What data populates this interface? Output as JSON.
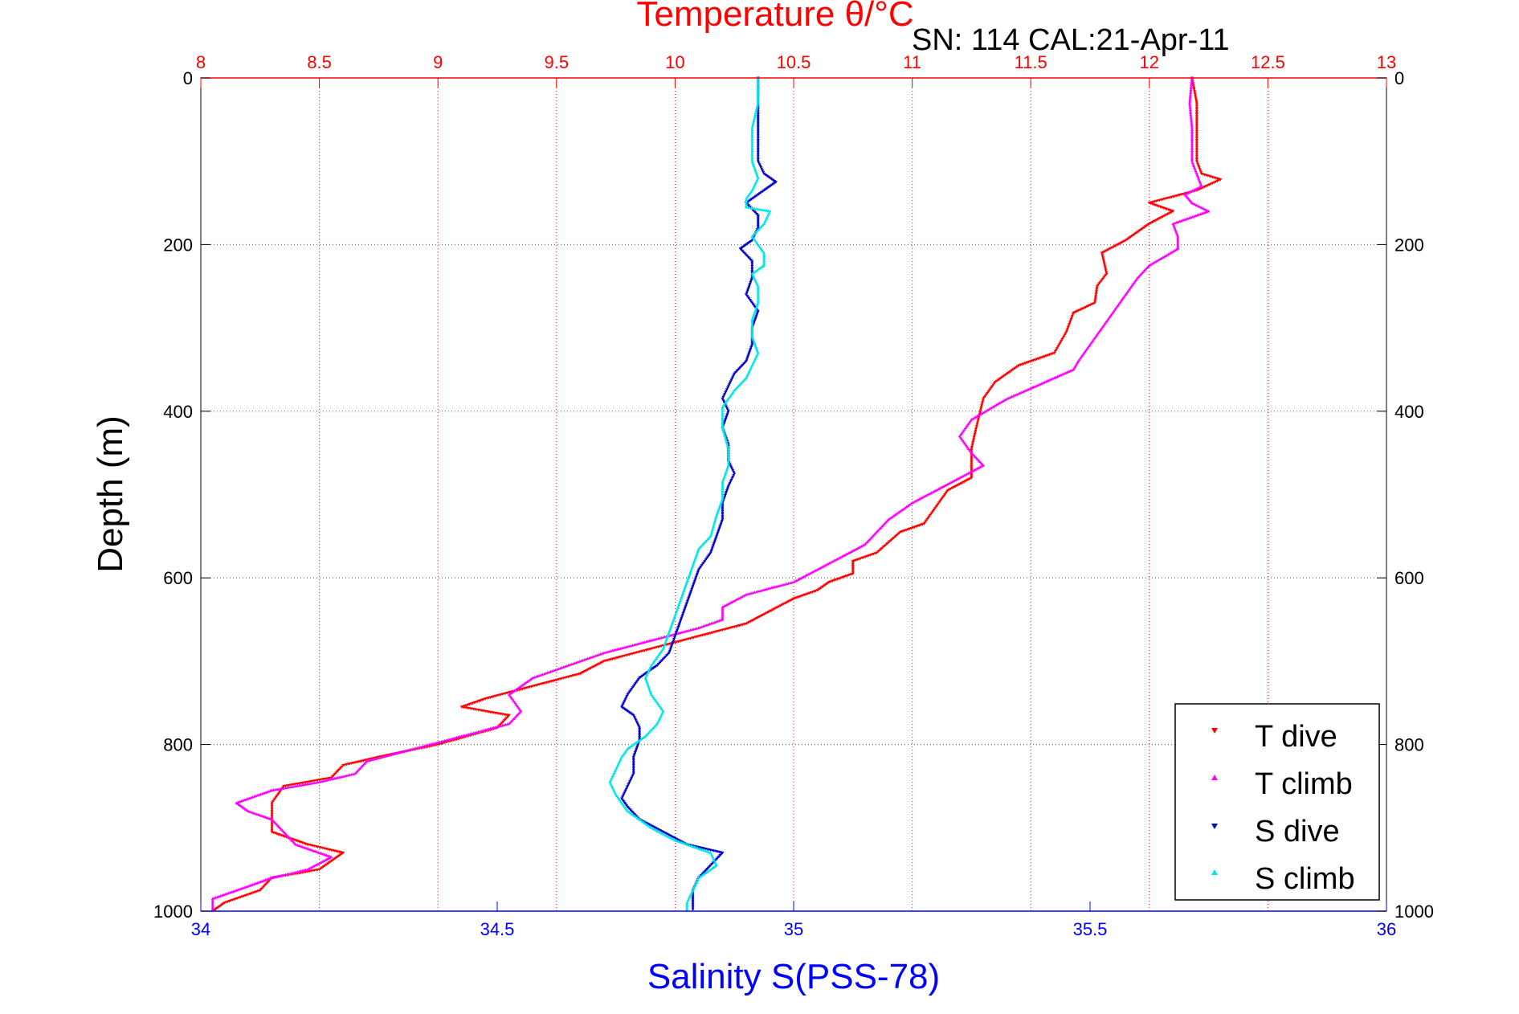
{
  "chart_data": {
    "type": "scatter",
    "title": "Temperature θ/°C",
    "subtitle": "SN: 114  CAL:21-Apr-11",
    "xlabel": "Salinity S(PSS-78)",
    "ylabel": "Depth (m)",
    "x_bottom": {
      "range": [
        34,
        36
      ],
      "ticks": [
        "34",
        "34.5",
        "35",
        "35.5",
        "36"
      ]
    },
    "x_top": {
      "range": [
        8,
        13
      ],
      "ticks": [
        "8",
        "8.5",
        "9",
        "9.5",
        "10",
        "10.5",
        "11",
        "11.5",
        "12",
        "12.5",
        "13"
      ]
    },
    "y": {
      "range": [
        0,
        1000
      ],
      "reversed": true,
      "ticks": [
        "0",
        "200",
        "400",
        "600",
        "800",
        "1000"
      ]
    },
    "grid": true,
    "legend_position": "bottom-right",
    "colors": {
      "t_dive": "#ff0000",
      "t_climb": "#ff00ff",
      "s_dive": "#0000cc",
      "s_climb": "#00e5e5",
      "title": "#ff0000",
      "xlabel": "#0000ff"
    },
    "series": [
      {
        "name": "T dive",
        "axis": "temperature",
        "marker": "triangle-down",
        "points": [
          [
            12.18,
            0
          ],
          [
            12.2,
            30
          ],
          [
            12.2,
            60
          ],
          [
            12.2,
            100
          ],
          [
            12.22,
            115
          ],
          [
            12.3,
            122
          ],
          [
            12.2,
            135
          ],
          [
            12.0,
            150
          ],
          [
            12.1,
            160
          ],
          [
            12.0,
            175
          ],
          [
            11.95,
            185
          ],
          [
            11.9,
            195
          ],
          [
            11.8,
            210
          ],
          [
            11.82,
            235
          ],
          [
            11.78,
            250
          ],
          [
            11.77,
            270
          ],
          [
            11.68,
            282
          ],
          [
            11.65,
            305
          ],
          [
            11.6,
            330
          ],
          [
            11.45,
            345
          ],
          [
            11.35,
            365
          ],
          [
            11.3,
            385
          ],
          [
            11.27,
            420
          ],
          [
            11.25,
            445
          ],
          [
            11.25,
            465
          ],
          [
            11.25,
            480
          ],
          [
            11.15,
            495
          ],
          [
            11.1,
            515
          ],
          [
            11.05,
            535
          ],
          [
            10.95,
            545
          ],
          [
            10.85,
            570
          ],
          [
            10.75,
            580
          ],
          [
            10.75,
            595
          ],
          [
            10.65,
            605
          ],
          [
            10.6,
            615
          ],
          [
            10.5,
            625
          ],
          [
            10.4,
            640
          ],
          [
            10.3,
            655
          ],
          [
            10.1,
            670
          ],
          [
            9.9,
            685
          ],
          [
            9.7,
            700
          ],
          [
            9.6,
            715
          ],
          [
            9.4,
            730
          ],
          [
            9.2,
            745
          ],
          [
            9.1,
            755
          ],
          [
            9.3,
            765
          ],
          [
            9.25,
            780
          ],
          [
            9.0,
            800
          ],
          [
            8.75,
            815
          ],
          [
            8.6,
            825
          ],
          [
            8.55,
            840
          ],
          [
            8.35,
            850
          ],
          [
            8.3,
            870
          ],
          [
            8.3,
            890
          ],
          [
            8.3,
            905
          ],
          [
            8.45,
            920
          ],
          [
            8.6,
            930
          ],
          [
            8.5,
            950
          ],
          [
            8.3,
            960
          ],
          [
            8.25,
            975
          ],
          [
            8.1,
            990
          ],
          [
            8.05,
            1000
          ]
        ]
      },
      {
        "name": "T climb",
        "axis": "temperature",
        "marker": "triangle-up",
        "points": [
          [
            12.18,
            0
          ],
          [
            12.17,
            30
          ],
          [
            12.18,
            60
          ],
          [
            12.18,
            100
          ],
          [
            12.2,
            115
          ],
          [
            12.22,
            130
          ],
          [
            12.15,
            140
          ],
          [
            12.18,
            150
          ],
          [
            12.25,
            160
          ],
          [
            12.1,
            175
          ],
          [
            12.12,
            190
          ],
          [
            12.12,
            205
          ],
          [
            12.0,
            225
          ],
          [
            11.95,
            240
          ],
          [
            11.9,
            260
          ],
          [
            11.85,
            280
          ],
          [
            11.8,
            300
          ],
          [
            11.75,
            320
          ],
          [
            11.7,
            340
          ],
          [
            11.68,
            350
          ],
          [
            11.6,
            360
          ],
          [
            11.4,
            385
          ],
          [
            11.25,
            410
          ],
          [
            11.2,
            430
          ],
          [
            11.25,
            450
          ],
          [
            11.3,
            465
          ],
          [
            11.2,
            480
          ],
          [
            11.1,
            495
          ],
          [
            11.0,
            510
          ],
          [
            10.9,
            530
          ],
          [
            10.85,
            545
          ],
          [
            10.8,
            560
          ],
          [
            10.7,
            575
          ],
          [
            10.6,
            590
          ],
          [
            10.5,
            605
          ],
          [
            10.3,
            620
          ],
          [
            10.2,
            635
          ],
          [
            10.2,
            650
          ],
          [
            10.1,
            660
          ],
          [
            9.9,
            675
          ],
          [
            9.7,
            690
          ],
          [
            9.55,
            705
          ],
          [
            9.4,
            720
          ],
          [
            9.3,
            740
          ],
          [
            9.35,
            760
          ],
          [
            9.3,
            775
          ],
          [
            9.1,
            790
          ],
          [
            8.9,
            805
          ],
          [
            8.7,
            820
          ],
          [
            8.65,
            835
          ],
          [
            8.5,
            845
          ],
          [
            8.3,
            855
          ],
          [
            8.15,
            870
          ],
          [
            8.2,
            880
          ],
          [
            8.3,
            890
          ],
          [
            8.35,
            905
          ],
          [
            8.4,
            920
          ],
          [
            8.55,
            935
          ],
          [
            8.45,
            950
          ],
          [
            8.3,
            960
          ],
          [
            8.2,
            970
          ],
          [
            8.05,
            985
          ],
          [
            8.05,
            1000
          ]
        ]
      },
      {
        "name": "S dive",
        "axis": "salinity",
        "marker": "triangle-down",
        "points": [
          [
            34.94,
            0
          ],
          [
            34.94,
            30
          ],
          [
            34.94,
            60
          ],
          [
            34.94,
            100
          ],
          [
            34.95,
            115
          ],
          [
            34.97,
            125
          ],
          [
            34.95,
            135
          ],
          [
            34.92,
            150
          ],
          [
            34.94,
            165
          ],
          [
            34.94,
            180
          ],
          [
            34.93,
            195
          ],
          [
            34.91,
            205
          ],
          [
            34.93,
            220
          ],
          [
            34.93,
            240
          ],
          [
            34.92,
            260
          ],
          [
            34.94,
            280
          ],
          [
            34.93,
            300
          ],
          [
            34.93,
            320
          ],
          [
            34.92,
            340
          ],
          [
            34.9,
            355
          ],
          [
            34.89,
            370
          ],
          [
            34.88,
            385
          ],
          [
            34.89,
            400
          ],
          [
            34.88,
            420
          ],
          [
            34.89,
            440
          ],
          [
            34.89,
            460
          ],
          [
            34.9,
            475
          ],
          [
            34.89,
            490
          ],
          [
            34.88,
            510
          ],
          [
            34.88,
            530
          ],
          [
            34.87,
            550
          ],
          [
            34.86,
            570
          ],
          [
            34.84,
            590
          ],
          [
            34.83,
            610
          ],
          [
            34.82,
            630
          ],
          [
            34.81,
            650
          ],
          [
            34.8,
            670
          ],
          [
            34.79,
            690
          ],
          [
            34.77,
            705
          ],
          [
            34.74,
            720
          ],
          [
            34.72,
            740
          ],
          [
            34.71,
            755
          ],
          [
            34.73,
            765
          ],
          [
            34.74,
            780
          ],
          [
            34.74,
            795
          ],
          [
            34.73,
            815
          ],
          [
            34.73,
            835
          ],
          [
            34.72,
            850
          ],
          [
            34.71,
            865
          ],
          [
            34.72,
            875
          ],
          [
            34.74,
            890
          ],
          [
            34.78,
            905
          ],
          [
            34.82,
            920
          ],
          [
            34.88,
            930
          ],
          [
            34.86,
            945
          ],
          [
            34.84,
            960
          ],
          [
            34.83,
            975
          ],
          [
            34.83,
            990
          ],
          [
            34.83,
            1000
          ]
        ]
      },
      {
        "name": "S climb",
        "axis": "salinity",
        "marker": "triangle-up",
        "points": [
          [
            34.94,
            0
          ],
          [
            34.94,
            30
          ],
          [
            34.93,
            60
          ],
          [
            34.93,
            100
          ],
          [
            34.94,
            120
          ],
          [
            34.93,
            135
          ],
          [
            34.92,
            145
          ],
          [
            34.92,
            155
          ],
          [
            34.96,
            160
          ],
          [
            34.95,
            175
          ],
          [
            34.93,
            190
          ],
          [
            34.94,
            200
          ],
          [
            34.95,
            210
          ],
          [
            34.95,
            225
          ],
          [
            34.93,
            235
          ],
          [
            34.94,
            250
          ],
          [
            34.94,
            270
          ],
          [
            34.93,
            290
          ],
          [
            34.93,
            310
          ],
          [
            34.94,
            330
          ],
          [
            34.93,
            345
          ],
          [
            34.92,
            360
          ],
          [
            34.9,
            375
          ],
          [
            34.88,
            395
          ],
          [
            34.88,
            420
          ],
          [
            34.89,
            445
          ],
          [
            34.89,
            465
          ],
          [
            34.88,
            485
          ],
          [
            34.88,
            505
          ],
          [
            34.87,
            525
          ],
          [
            34.86,
            550
          ],
          [
            34.84,
            565
          ],
          [
            34.83,
            585
          ],
          [
            34.82,
            605
          ],
          [
            34.81,
            625
          ],
          [
            34.8,
            645
          ],
          [
            34.79,
            665
          ],
          [
            34.78,
            685
          ],
          [
            34.76,
            705
          ],
          [
            34.75,
            720
          ],
          [
            34.76,
            740
          ],
          [
            34.78,
            760
          ],
          [
            34.77,
            775
          ],
          [
            34.75,
            790
          ],
          [
            34.72,
            805
          ],
          [
            34.71,
            815
          ],
          [
            34.7,
            830
          ],
          [
            34.69,
            845
          ],
          [
            34.7,
            860
          ],
          [
            34.72,
            880
          ],
          [
            34.76,
            900
          ],
          [
            34.8,
            915
          ],
          [
            34.86,
            930
          ],
          [
            34.87,
            945
          ],
          [
            34.84,
            960
          ],
          [
            34.83,
            975
          ],
          [
            34.82,
            990
          ],
          [
            34.82,
            1000
          ]
        ]
      }
    ]
  }
}
